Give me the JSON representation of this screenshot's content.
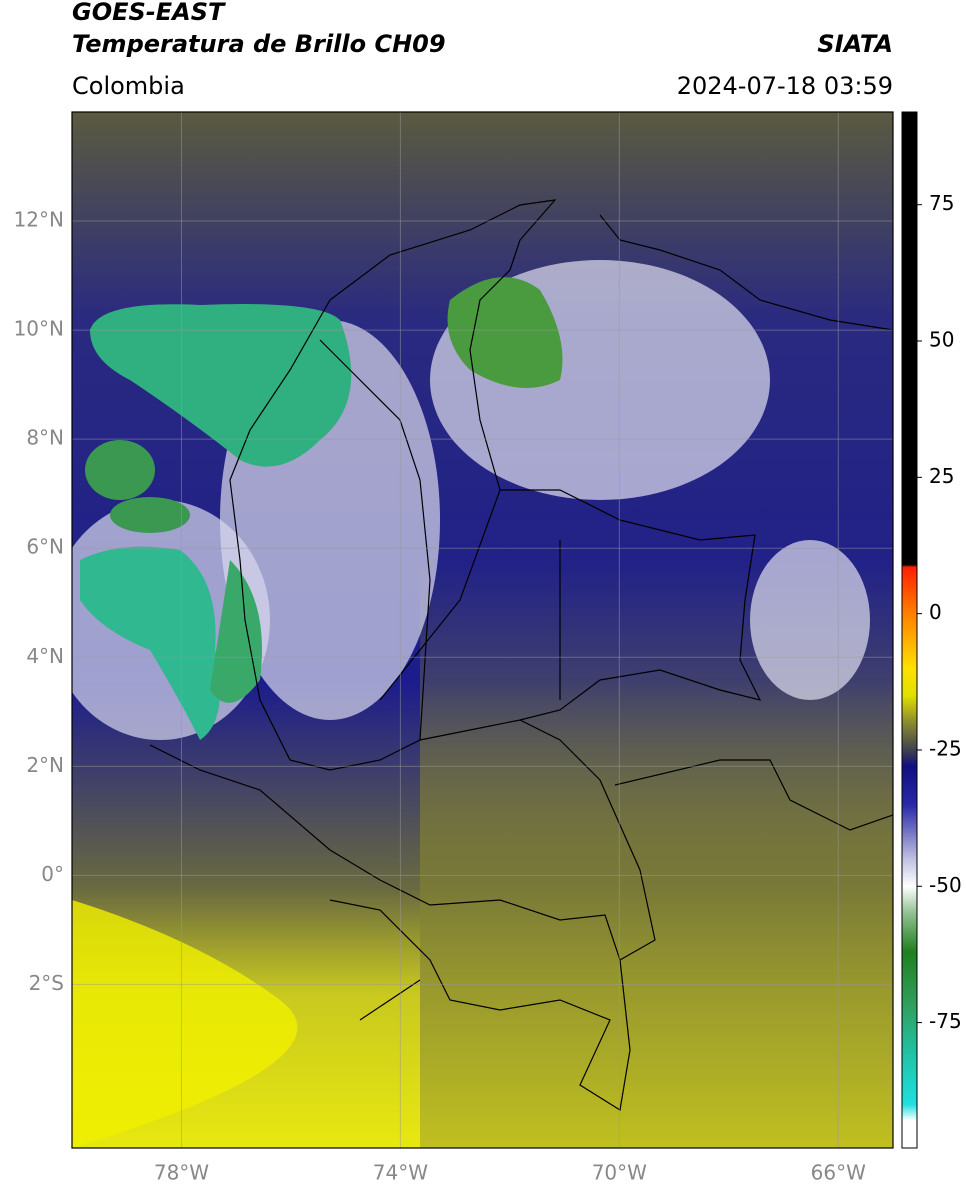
{
  "header": {
    "title_line1": "GOES-EAST",
    "title_line2": "Temperatura de Brillo CH09",
    "source": "SIATA",
    "region": "Colombia",
    "timestamp": "2024-07-18 03:59"
  },
  "map": {
    "xlim": [
      -80,
      -65
    ],
    "ylim": [
      -5,
      14
    ],
    "grid": true,
    "lat_ticks": [
      {
        "value": 12,
        "label": "12°N"
      },
      {
        "value": 10,
        "label": "10°N"
      },
      {
        "value": 8,
        "label": "8°N"
      },
      {
        "value": 6,
        "label": "6°N"
      },
      {
        "value": 4,
        "label": "4°N"
      },
      {
        "value": 2,
        "label": "2°N"
      },
      {
        "value": 0,
        "label": "0°"
      },
      {
        "value": -2,
        "label": "2°S"
      }
    ],
    "lon_ticks": [
      {
        "value": -78,
        "label": "78°W"
      },
      {
        "value": -74,
        "label": "74°W"
      },
      {
        "value": -70,
        "label": "70°W"
      },
      {
        "value": -66,
        "label": "66°W"
      }
    ]
  },
  "colorbar": {
    "clim": [
      -98,
      92
    ],
    "ticks": [
      75,
      50,
      25,
      0,
      -25,
      -50,
      -75
    ],
    "colormap": [
      [
        92,
        "#000000"
      ],
      [
        9,
        "#000000"
      ],
      [
        8.5,
        "#ff2000"
      ],
      [
        0,
        "#ff8000"
      ],
      [
        -10,
        "#ffe000"
      ],
      [
        -15,
        "#e0e000"
      ],
      [
        -20,
        "#8a8a30"
      ],
      [
        -25,
        "#404050"
      ],
      [
        -28,
        "#101080"
      ],
      [
        -35,
        "#2828a8"
      ],
      [
        -45,
        "#c0c0e0"
      ],
      [
        -50,
        "#ffffff"
      ],
      [
        -55,
        "#90c090"
      ],
      [
        -62,
        "#208020"
      ],
      [
        -72,
        "#30a060"
      ],
      [
        -80,
        "#20c0a0"
      ],
      [
        -90,
        "#20e0e0"
      ],
      [
        -93,
        "#ffffff"
      ],
      [
        -98,
        "#ffffff"
      ]
    ]
  }
}
